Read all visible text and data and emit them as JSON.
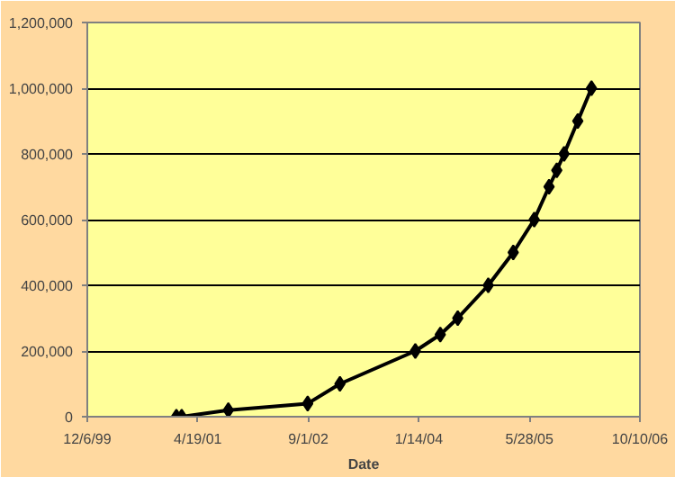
{
  "chart_data": {
    "type": "line",
    "xlabel": "Date",
    "x": [
      "2001-01-12",
      "2001-02-05",
      "2001-09-04",
      "2002-08-29",
      "2003-01-22",
      "2003-12-29",
      "2004-04-20",
      "2004-07-08",
      "2004-11-23",
      "2005-03-16",
      "2005-06-19",
      "2005-08-25",
      "2005-09-29",
      "2005-11-01",
      "2006-01-02",
      "2006-03-05"
    ],
    "series": [
      {
        "color": "#000000",
        "values": [
          0,
          0,
          20000,
          40000,
          100000,
          200000,
          250000,
          300000,
          400000,
          500000,
          600000,
          700000,
          750000,
          800000,
          900000,
          1000000
        ]
      }
    ],
    "xlim": [
      "1999-12-06",
      "2006-10-10"
    ],
    "xticks": [
      {
        "value": "1999-12-06",
        "label": "12/6/99"
      },
      {
        "value": "2001-04-19",
        "label": "4/19/01"
      },
      {
        "value": "2002-09-01",
        "label": "9/1/02"
      },
      {
        "value": "2004-01-14",
        "label": "1/14/04"
      },
      {
        "value": "2005-05-28",
        "label": "5/28/05"
      },
      {
        "value": "2006-10-10",
        "label": "10/10/06"
      }
    ],
    "ylim": [
      0,
      1200000
    ],
    "yticks": [
      {
        "value": 0,
        "label": "0"
      },
      {
        "value": 200000,
        "label": "200,000"
      },
      {
        "value": 400000,
        "label": "400,000"
      },
      {
        "value": 600000,
        "label": "600,000"
      },
      {
        "value": 800000,
        "label": "800,000"
      },
      {
        "value": 1000000,
        "label": "1,000,000"
      },
      {
        "value": 1200000,
        "label": "1,200,000"
      }
    ],
    "grid": "y",
    "marker": "diamond",
    "line_style": "solid"
  }
}
